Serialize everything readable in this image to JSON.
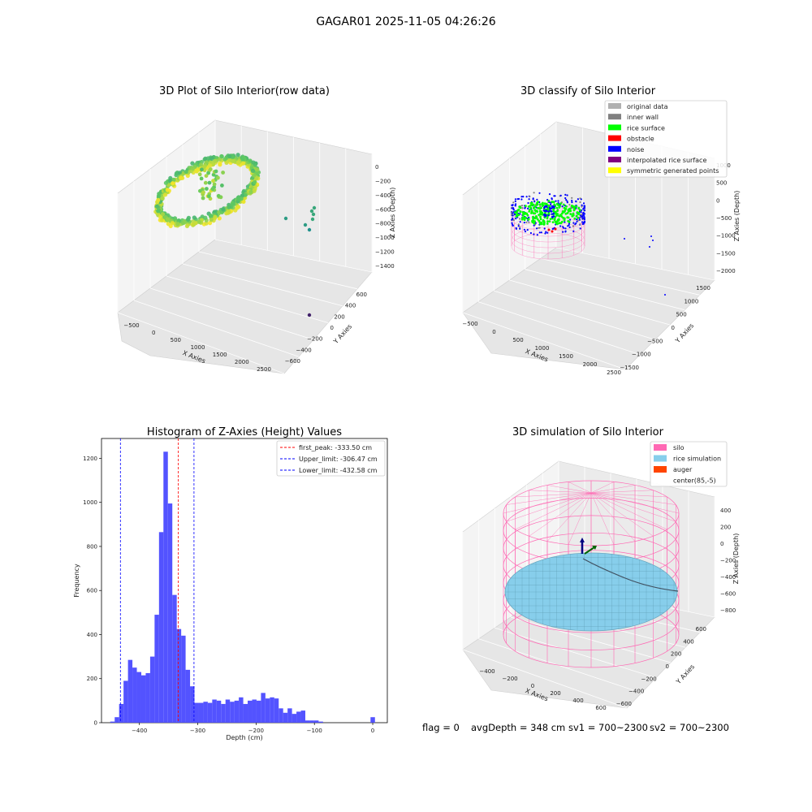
{
  "suptitle": "GAGAR01 2025-11-05 04:26:26",
  "status": {
    "flag": "flag = 0",
    "avg_depth": "avgDepth = 348 cm",
    "sv1": "sv1 = 700~2300",
    "sv2": "sv2 = 700~2300"
  },
  "colors": {
    "histogram_bar": "#5050ff",
    "first_peak_line": "#ff0000",
    "limit_line": "#0000ff",
    "silo": "#ff69b4",
    "rice_simulation": "#87ceeb",
    "auger": "#ff4500",
    "rice_surface": "#00ff00",
    "noise": "#0000ff",
    "inner_wall": "#808080",
    "original_data": "#b0b0b0",
    "obstacle": "#ff0000",
    "interpolated_rice_surface": "#800080",
    "symmetric_generated_points": "#ffff00",
    "colormap": "viridis"
  },
  "chart_data": [
    {
      "type": "scatter",
      "projection": "3d",
      "title": "3D Plot of Silo Interior(row data)",
      "xlabel": "X Axies",
      "ylabel": "Y Axies",
      "zlabel": "Z Axies (Depth)",
      "x_ticks": [
        "−500",
        "0",
        "500",
        "1000",
        "1500",
        "2000",
        "2500"
      ],
      "y_ticks": [
        "−600",
        "−400",
        "−200",
        "0",
        "200",
        "400",
        "600"
      ],
      "z_ticks": [
        "0",
        "−200",
        "−400",
        "−600",
        "−800",
        "−1000",
        "−1200",
        "−1400"
      ],
      "xlim": [
        -600,
        2600
      ],
      "ylim": [
        -650,
        650
      ],
      "zlim": [
        -1500,
        50
      ],
      "colormap": "viridis",
      "grid": true
    },
    {
      "type": "scatter",
      "projection": "3d",
      "title": "3D classify of Silo Interior",
      "xlabel": "X Axies",
      "ylabel": "Y Axies",
      "zlabel": "Z Axies (Depth)",
      "x_ticks": [
        "−500",
        "0",
        "500",
        "1000",
        "1500",
        "2000",
        "2500"
      ],
      "y_ticks": [
        "−1500",
        "−1000",
        "−500",
        "0",
        "500",
        "1000",
        "1500"
      ],
      "z_ticks": [
        "1000",
        "500",
        "0",
        "−500",
        "−1000",
        "−1500",
        "−2000"
      ],
      "xlim": [
        -600,
        2600
      ],
      "ylim": [
        -1600,
        1600
      ],
      "zlim": [
        -2100,
        1100
      ],
      "legend": [
        "original data",
        "inner wall",
        "rice surface",
        "obstacle",
        "noise",
        "interpolated rice surface",
        "symmetric generated points"
      ],
      "legend_colors": [
        "#b0b0b0",
        "#808080",
        "#00ff00",
        "#ff0000",
        "#0000ff",
        "#800080",
        "#ffff00"
      ],
      "legend_position": "top-right",
      "grid": true
    },
    {
      "type": "bar",
      "title": "Histogram of Z-Axies (Height) Values",
      "xlabel": "Depth (cm)",
      "ylabel": "Frequency",
      "xlim": [
        -465,
        25
      ],
      "ylim": [
        0,
        1290
      ],
      "x_ticks": [
        -400,
        -300,
        -200,
        -100,
        0
      ],
      "x_tick_labels": [
        "−400",
        "−300",
        "−200",
        "−100",
        "0"
      ],
      "y_ticks": [
        0,
        200,
        400,
        600,
        800,
        1000,
        1200
      ],
      "bin_start": -450,
      "bin_width": 7.6,
      "values": [
        5,
        25,
        85,
        190,
        285,
        250,
        230,
        215,
        225,
        300,
        490,
        865,
        1230,
        995,
        580,
        425,
        395,
        240,
        165,
        90,
        90,
        95,
        90,
        105,
        100,
        85,
        105,
        95,
        100,
        115,
        85,
        100,
        105,
        100,
        135,
        110,
        115,
        110,
        65,
        45,
        65,
        40,
        50,
        55,
        10,
        10,
        10,
        5,
        25
      ],
      "vlines": [
        {
          "name": "first_peak: -333.50 cm",
          "x": -333.5,
          "color": "#ff0000"
        },
        {
          "name": "Upper_limit: -306.47 cm",
          "x": -306.47,
          "color": "#0000ff"
        },
        {
          "name": "Lower_limit: -432.58 cm",
          "x": -432.58,
          "color": "#0000ff"
        }
      ],
      "legend_position": "top-right",
      "grid": false
    },
    {
      "type": "surface",
      "projection": "3d",
      "title": "3D simulation of Silo Interior",
      "xlabel": "X Axies",
      "ylabel": "Y Axies",
      "zlabel": "Z Axies (Depth)",
      "x_ticks": [
        "−400",
        "−200",
        "0",
        "200",
        "400",
        "600"
      ],
      "y_ticks": [
        "−600",
        "−400",
        "−200",
        "0",
        "200",
        "400",
        "600"
      ],
      "z_ticks": [
        "400",
        "200",
        "0",
        "−200",
        "−400",
        "−600",
        "−800"
      ],
      "xlim": [
        -650,
        750
      ],
      "ylim": [
        -700,
        700
      ],
      "zlim": [
        -950,
        450
      ],
      "legend": [
        "silo",
        "rice simulation",
        "auger",
        "center(85,-5)"
      ],
      "legend_colors": [
        "#ff69b4",
        "#87ceeb",
        "#ff4500",
        "#ffffff"
      ],
      "legend_position": "top-right",
      "grid": true
    }
  ]
}
